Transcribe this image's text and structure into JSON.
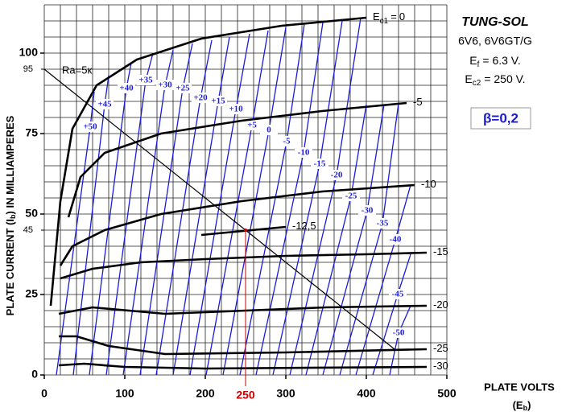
{
  "chart_data": {
    "type": "line",
    "xlim": [
      0,
      500
    ],
    "ylim": [
      0,
      115
    ],
    "xticks": [
      0,
      100,
      200,
      300,
      400,
      500
    ],
    "yticks": [
      0,
      25,
      50,
      75,
      100
    ],
    "yticks_small": [
      95,
      45
    ],
    "xgrid": [
      0,
      20,
      40,
      60,
      80,
      100,
      120,
      140,
      160,
      180,
      200,
      220,
      240,
      260,
      280,
      300,
      320,
      340,
      360,
      380,
      400,
      420,
      440,
      460,
      480,
      500
    ],
    "ygrid": [
      0,
      5,
      10,
      15,
      20,
      25,
      30,
      35,
      40,
      45,
      50,
      55,
      60,
      65,
      70,
      75,
      80,
      85,
      90,
      95,
      100,
      105,
      110,
      115
    ],
    "grid": true,
    "y_axis_title": {
      "main": "PLATE CURRENT (I",
      "sub": "b",
      "rest": ") IN MILLIAMPERES"
    },
    "x_axis_title": {
      "main": "PLATE VOLTS",
      "open": "(E",
      "sub": "b",
      "close": ")"
    },
    "curve_prefix": {
      "main": "E",
      "sub": "c1",
      "eq": "="
    },
    "info": {
      "title": "TUNG-SOL",
      "tube": "6V6, 6V6GT/G",
      "ef": {
        "main": "E",
        "sub": "f",
        "rest": "= 6.3 V."
      },
      "ec2": {
        "main": "E",
        "sub": "c2",
        "rest": "= 250 V."
      }
    },
    "beta_label": "β=0,2",
    "series": [
      {
        "name": "0",
        "color": "#000000",
        "x": [
          8,
          20,
          35,
          65,
          115,
          195,
          295,
          400
        ],
        "values": [
          21.5,
          54,
          76.5,
          90,
          98,
          104.5,
          108.5,
          111
        ]
      },
      {
        "name": "-5",
        "color": "#000000",
        "x": [
          30,
          45,
          75,
          145,
          245,
          345,
          450
        ],
        "values": [
          49,
          61.5,
          69,
          75,
          79,
          82,
          84.5
        ]
      },
      {
        "name": "-10",
        "color": "#000000",
        "x": [
          20,
          35,
          75,
          145,
          245,
          345,
          460
        ],
        "values": [
          34,
          40,
          45,
          50,
          54,
          57,
          59
        ]
      },
      {
        "name": "-12,5",
        "color": "#000000",
        "x": [
          195,
          300
        ],
        "values": [
          43.5,
          46
        ]
      },
      {
        "name": "-15",
        "color": "#000000",
        "x": [
          20,
          60,
          120,
          200,
          300,
          400,
          475
        ],
        "values": [
          30,
          33,
          35,
          36,
          37,
          37.5,
          38
        ]
      },
      {
        "name": "-20",
        "color": "#000000",
        "x": [
          18,
          60,
          150,
          250,
          350,
          475
        ],
        "values": [
          19,
          21,
          19,
          20,
          21,
          21.5
        ]
      },
      {
        "name": "-25",
        "color": "#000000",
        "x": [
          18,
          40,
          80,
          150,
          300,
          475
        ],
        "values": [
          12,
          12,
          9,
          6.5,
          7,
          8
        ]
      },
      {
        "name": "-30",
        "color": "#000000",
        "x": [
          18,
          50,
          100,
          200,
          475
        ],
        "values": [
          3,
          3.5,
          2.5,
          2,
          2.5
        ]
      }
    ],
    "blue_series": [
      {
        "name": "+50",
        "color": "#1a1ad8",
        "x": [
          15,
          57,
          62
        ],
        "values": [
          0,
          77,
          88
        ]
      },
      {
        "name": "+45",
        "color": "#1a1ad8",
        "x": [
          36,
          75,
          80
        ],
        "values": [
          0,
          84,
          93
        ]
      },
      {
        "name": "+40",
        "color": "#1a1ad8",
        "x": [
          56,
          102,
          108
        ],
        "values": [
          0,
          89,
          97
        ]
      },
      {
        "name": "+35",
        "color": "#1a1ad8",
        "x": [
          77,
          126,
          135
        ],
        "values": [
          0,
          91.5,
          100
        ]
      },
      {
        "name": "+30",
        "color": "#1a1ad8",
        "x": [
          98,
          150,
          160
        ],
        "values": [
          0,
          90,
          101
        ]
      },
      {
        "name": "+25",
        "color": "#1a1ad8",
        "x": [
          119,
          172,
          184
        ],
        "values": [
          0,
          89,
          103
        ]
      },
      {
        "name": "+20",
        "color": "#1a1ad8",
        "x": [
          139,
          194,
          208
        ],
        "values": [
          0,
          86,
          104
        ]
      },
      {
        "name": "+15",
        "color": "#1a1ad8",
        "x": [
          160,
          216,
          230
        ],
        "values": [
          0,
          85,
          105
        ]
      },
      {
        "name": "+10",
        "color": "#1a1ad8",
        "x": [
          181,
          238,
          255
        ],
        "values": [
          0,
          82.5,
          106
        ]
      },
      {
        "name": "+5",
        "color": "#1a1ad8",
        "x": [
          201,
          258,
          278
        ],
        "values": [
          0,
          77.5,
          107
        ]
      },
      {
        "name": "0",
        "color": "#1a1ad8",
        "x": [
          222,
          279,
          300
        ],
        "values": [
          0,
          76,
          108
        ]
      },
      {
        "name": "-5",
        "color": "#1a1ad8",
        "x": [
          243,
          301,
          323
        ],
        "values": [
          0,
          72.5,
          109
        ]
      },
      {
        "name": "-10",
        "color": "#1a1ad8",
        "x": [
          263,
          322,
          346
        ],
        "values": [
          0,
          69,
          109.5
        ]
      },
      {
        "name": "-15",
        "color": "#1a1ad8",
        "x": [
          284,
          342,
          370
        ],
        "values": [
          0,
          65.5,
          110
        ]
      },
      {
        "name": "-20",
        "color": "#1a1ad8",
        "x": [
          305,
          363,
          393
        ],
        "values": [
          0,
          62,
          111
        ]
      },
      {
        "name": "-25",
        "color": "#1a1ad8",
        "x": [
          325,
          381,
          400
        ],
        "values": [
          0,
          55.5,
          84
        ]
      },
      {
        "name": "-30",
        "color": "#1a1ad8",
        "x": [
          346,
          401,
          422
        ],
        "values": [
          0,
          51,
          84
        ]
      },
      {
        "name": "-35",
        "color": "#1a1ad8",
        "x": [
          367,
          420,
          440
        ],
        "values": [
          0,
          47,
          84.5
        ]
      },
      {
        "name": "-40",
        "color": "#1a1ad8",
        "x": [
          387,
          436,
          455
        ],
        "values": [
          0,
          42,
          59
        ]
      },
      {
        "name": "-45",
        "color": "#1a1ad8",
        "x": [
          408,
          439,
          455
        ],
        "values": [
          0,
          25,
          37.5
        ]
      },
      {
        "name": "-50",
        "color": "#1a1ad8",
        "x": [
          429,
          440,
          455
        ],
        "values": [
          0,
          13,
          21.5
        ]
      }
    ],
    "load_line": {
      "label": "Ra=5к",
      "color": "#000000",
      "x": [
        0,
        250,
        435
      ],
      "values": [
        95,
        45,
        8
      ]
    },
    "operating_point": {
      "x": 250,
      "y": 45,
      "color": "#cc0000"
    }
  }
}
